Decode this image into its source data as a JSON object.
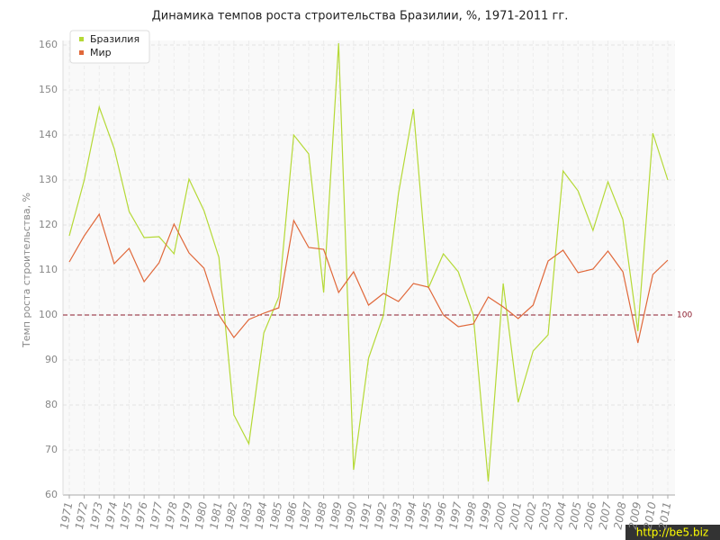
{
  "chart_data": {
    "type": "line",
    "title": "Динамика темпов роста строительства Бразилии, %, 1971-2011 гг.",
    "y_label": "Темп роста строительства, %",
    "categories": [
      "1971",
      "1972",
      "1973",
      "1974",
      "1975",
      "1976",
      "1977",
      "1978",
      "1979",
      "1980",
      "1981",
      "1982",
      "1983",
      "1984",
      "1985",
      "1986",
      "1987",
      "1988",
      "1989",
      "1990",
      "1991",
      "1992",
      "1993",
      "1994",
      "1995",
      "1996",
      "1997",
      "1998",
      "1999",
      "2000",
      "2001",
      "2002",
      "2003",
      "2004",
      "2005",
      "2006",
      "2007",
      "2008",
      "2009",
      "2010",
      "2011"
    ],
    "series": [
      {
        "name": "Бразилия",
        "color": "#b5d936",
        "values": [
          117.6,
          130,
          146.2,
          137,
          123,
          117.2,
          117.4,
          113.6,
          130.2,
          123.2,
          112.8,
          77.8,
          71.4,
          96,
          104,
          140,
          135.8,
          105,
          160.4,
          65.6,
          90.4,
          100,
          127,
          145.8,
          106,
          113.6,
          109.6,
          100,
          63,
          107,
          80.6,
          92,
          95.6,
          132,
          127.6,
          118.8,
          129.6,
          121.2,
          96.4,
          140.4,
          130
        ]
      },
      {
        "name": "Мир",
        "color": "#e0683a",
        "values": [
          111.8,
          117.6,
          122.4,
          111.4,
          114.8,
          107.4,
          111.6,
          120.2,
          113.8,
          110.4,
          100,
          95,
          99,
          100.4,
          101.6,
          121,
          115,
          114.6,
          105,
          109.6,
          102.2,
          104.8,
          103,
          107,
          106.2,
          100,
          97.4,
          98,
          104,
          101.8,
          99.2,
          102.2,
          112,
          114.4,
          109.4,
          110.2,
          114.2,
          109.6,
          93.8,
          109,
          112.2
        ]
      }
    ],
    "reference_line": {
      "value": 100,
      "label": "100",
      "color": "#8b1a2b"
    },
    "ylim": [
      60,
      160
    ],
    "yticks": [
      60,
      70,
      80,
      90,
      100,
      110,
      120,
      130,
      140,
      150,
      160
    ],
    "grid": true,
    "legend": "top-left",
    "watermark": "http://be5.biz"
  }
}
